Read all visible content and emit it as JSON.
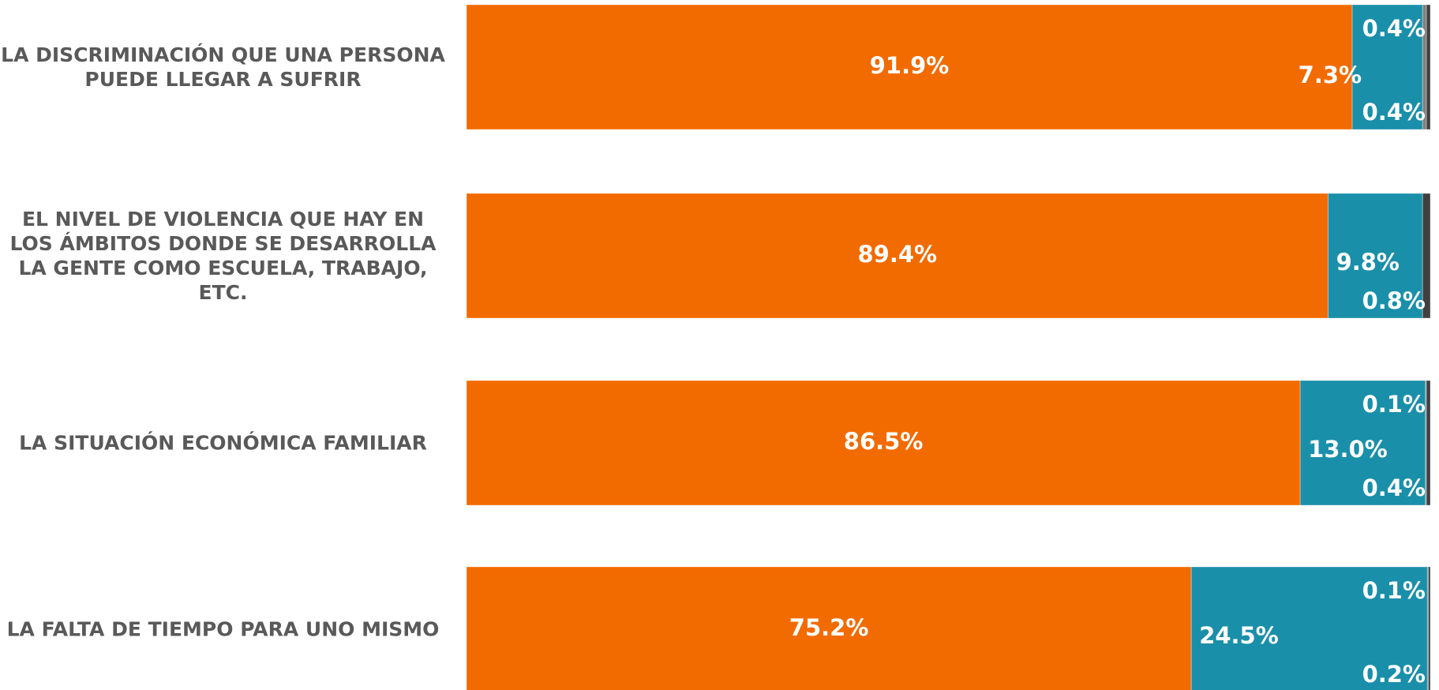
{
  "chart_data": {
    "type": "stacked-barh",
    "categories": [
      "LA DISCRIMINACIÓN QUE UNA PERSONA PUEDE LLEGAR A SUFRIR",
      "EL NIVEL DE VIOLENCIA QUE HAY EN LOS ÁMBITOS DONDE SE DESARROLLA LA GENTE COMO ESCUELA, TRABAJO, ETC.",
      "LA SITUACIÓN ECONÓMICA FAMILIAR",
      "LA FALTA DE TIEMPO PARA UNO MISMO"
    ],
    "series": [
      {
        "color": "#f26b00",
        "values": [
          91.9,
          89.4,
          86.5,
          75.2
        ],
        "value_labels": [
          "91.9%",
          "89.4%",
          "86.5%",
          "75.2%"
        ]
      },
      {
        "color": "#1a8fa9",
        "values": [
          7.3,
          9.8,
          13.0,
          24.5
        ],
        "value_labels": [
          "7.3%",
          "9.8%",
          "13.0%",
          "24.5%"
        ]
      },
      {
        "color": "#7f7f7f",
        "values": [
          0.4,
          null,
          0.1,
          0.1
        ],
        "value_labels": [
          "0.4%",
          null,
          "0.1%",
          "0.1%"
        ]
      },
      {
        "color": "#404040",
        "values": [
          0.4,
          0.8,
          0.4,
          0.2
        ],
        "value_labels": [
          "0.4%",
          "0.8%",
          "0.4%",
          "0.2%"
        ]
      }
    ],
    "xlim": [
      0,
      100
    ]
  }
}
